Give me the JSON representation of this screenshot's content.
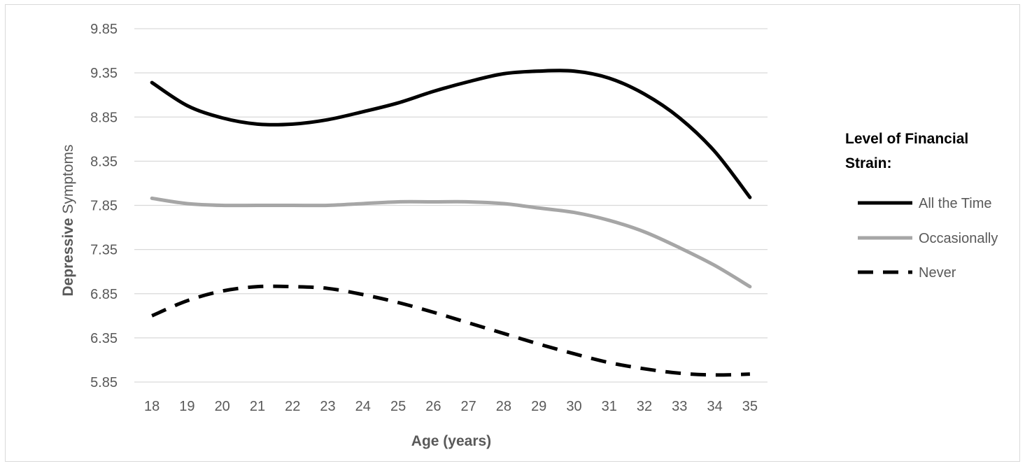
{
  "chart_data": {
    "type": "line",
    "x": [
      18,
      19,
      20,
      21,
      22,
      23,
      24,
      25,
      26,
      27,
      28,
      29,
      30,
      31,
      32,
      33,
      34,
      35
    ],
    "xlabel": "Age (years)",
    "ylabel_bold": "Depressive",
    "ylabel_rest": " Symptoms",
    "ylim": [
      5.85,
      9.85
    ],
    "yticks": [
      "5.85",
      "6.35",
      "6.85",
      "7.35",
      "7.85",
      "8.35",
      "8.85",
      "9.35",
      "9.85"
    ],
    "grid": "horizontal",
    "legend": {
      "title_line1": "Level of Financial",
      "title_line2": "Strain:",
      "placement": "right"
    },
    "series": [
      {
        "name": "All the Time",
        "color": "#000000",
        "style": "solid",
        "values": [
          9.24,
          8.98,
          8.84,
          8.77,
          8.77,
          8.82,
          8.91,
          9.01,
          9.14,
          9.25,
          9.34,
          9.37,
          9.37,
          9.29,
          9.11,
          8.84,
          8.46,
          7.94
        ]
      },
      {
        "name": "Occasionally",
        "color": "#a6a6a6",
        "style": "solid",
        "values": [
          7.93,
          7.87,
          7.85,
          7.85,
          7.85,
          7.85,
          7.87,
          7.89,
          7.89,
          7.89,
          7.87,
          7.82,
          7.77,
          7.68,
          7.55,
          7.37,
          7.17,
          6.93
        ]
      },
      {
        "name": "Never",
        "color": "#000000",
        "style": "dashed",
        "values": [
          6.6,
          6.77,
          6.88,
          6.93,
          6.93,
          6.91,
          6.84,
          6.75,
          6.64,
          6.52,
          6.4,
          6.28,
          6.17,
          6.07,
          6.0,
          5.95,
          5.93,
          5.94
        ]
      }
    ]
  }
}
